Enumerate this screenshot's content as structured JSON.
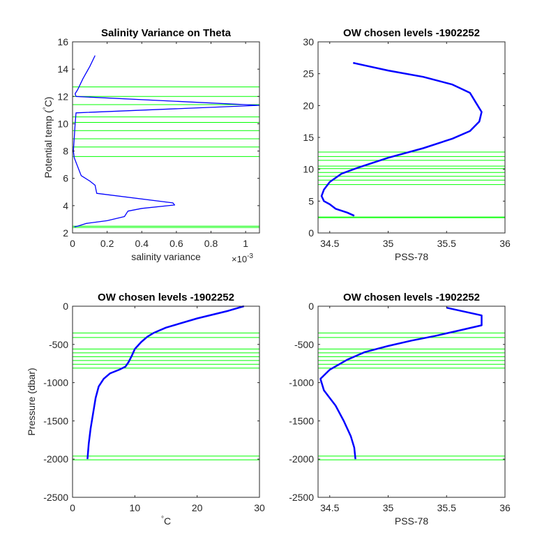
{
  "colors": {
    "profile": "#0000ff",
    "level": "#00ff00",
    "axes": "#262626"
  },
  "chart_data": [
    {
      "type": "line",
      "title": "Salinity Variance on Theta",
      "xlabel": "salinity variance",
      "x_exponent": "×10",
      "x_exponent_power": "-3",
      "ylabel": "Potential temp (",
      "ylabel_degree": "°",
      "ylabel_end": "C)",
      "xlim": [
        0,
        1.08
      ],
      "ylim": [
        2,
        16
      ],
      "xticks": [
        0,
        0.2,
        0.4,
        0.6,
        0.8,
        1
      ],
      "xtick_labels": [
        "0",
        "0.2",
        "0.4",
        "0.6",
        "0.8",
        "1"
      ],
      "yticks": [
        2,
        4,
        6,
        8,
        10,
        12,
        14,
        16
      ],
      "ytick_labels": [
        "2",
        "4",
        "6",
        "8",
        "10",
        "12",
        "14",
        "16"
      ],
      "series": [
        {
          "x": [
            0.13,
            0.1,
            0.06,
            0.03,
            0.015,
            0.02,
            1.08,
            0.02,
            0.015,
            0.01,
            0.005,
            0.01,
            0.05,
            0.1,
            0.13,
            0.14,
            0.58,
            0.59,
            0.4,
            0.32,
            0.3,
            0.2,
            0.08,
            0.03,
            0.01
          ],
          "y": [
            15,
            14.2,
            13.3,
            12.5,
            12.2,
            12.0,
            11.35,
            10.8,
            10.0,
            9.0,
            8.0,
            7.5,
            6.2,
            5.8,
            5.5,
            4.9,
            4.2,
            4.05,
            3.8,
            3.6,
            3.2,
            2.9,
            2.7,
            2.5,
            2.45
          ]
        }
      ],
      "levels": [
        2.4,
        2.5,
        7.6,
        8.3,
        8.9,
        9.5,
        10.1,
        10.5,
        11.4,
        12.0,
        12.7
      ]
    },
    {
      "type": "line",
      "title": "OW chosen levels -1902252",
      "xlabel": "PSS-78",
      "xlim": [
        34.4,
        36
      ],
      "ylim": [
        0,
        30
      ],
      "xticks": [
        34.5,
        35,
        35.5,
        36
      ],
      "xtick_labels": [
        "34.5",
        "35",
        "35.5",
        "36"
      ],
      "yticks": [
        0,
        5,
        10,
        15,
        20,
        25,
        30
      ],
      "ytick_labels": [
        "0",
        "5",
        "10",
        "15",
        "20",
        "25",
        "30"
      ],
      "series": [
        {
          "x": [
            34.71,
            34.65,
            34.55,
            34.5,
            34.45,
            34.43,
            34.45,
            34.5,
            34.6,
            34.75,
            35.0,
            35.3,
            35.55,
            35.7,
            35.78,
            35.8,
            35.75,
            35.7,
            35.55,
            35.3,
            35.0,
            34.8,
            34.7
          ],
          "y": [
            2.7,
            3.2,
            3.8,
            4.5,
            5.0,
            5.8,
            6.8,
            8.0,
            9.3,
            10.3,
            11.8,
            13.3,
            14.8,
            16.0,
            17.5,
            19.0,
            20.5,
            22.0,
            23.3,
            24.5,
            25.5,
            26.3,
            26.7
          ]
        }
      ],
      "levels": [
        2.4,
        2.5,
        7.6,
        8.3,
        8.9,
        9.5,
        10.1,
        10.5,
        11.4,
        12.0,
        12.7
      ]
    },
    {
      "type": "line",
      "title": "OW chosen levels -1902252",
      "xlabel": "C",
      "xlabel_degree": "°",
      "ylabel": "Pressure (dbar)",
      "xlim": [
        0,
        30
      ],
      "ylim": [
        -2500,
        0
      ],
      "xticks": [
        0,
        10,
        20,
        30
      ],
      "xtick_labels": [
        "0",
        "10",
        "20",
        "30"
      ],
      "yticks": [
        -2500,
        -2000,
        -1500,
        -1000,
        -500,
        0
      ],
      "ytick_labels": [
        "-2500",
        "-2000",
        "-1500",
        "-1000",
        "-500",
        "0"
      ],
      "series": [
        {
          "x": [
            27.5,
            25,
            20,
            15,
            13,
            12,
            11,
            10,
            9.5,
            9,
            8.5,
            7.5,
            6,
            5,
            4.2,
            3.7,
            3.3,
            2.9,
            2.6,
            2.4
          ],
          "y": [
            0,
            -60,
            -160,
            -280,
            -350,
            -400,
            -470,
            -560,
            -650,
            -730,
            -790,
            -830,
            -880,
            -950,
            -1050,
            -1200,
            -1400,
            -1600,
            -1800,
            -2000
          ]
        }
      ],
      "levels": [
        -350,
        -410,
        -560,
        -610,
        -660,
        -710,
        -760,
        -810,
        -1960,
        -2010
      ]
    },
    {
      "type": "line",
      "title": "OW chosen levels -1902252",
      "xlabel": "PSS-78",
      "xlim": [
        34.4,
        36
      ],
      "ylim": [
        -2500,
        0
      ],
      "xticks": [
        34.5,
        35,
        35.5,
        36
      ],
      "xtick_labels": [
        "34.5",
        "35",
        "35.5",
        "36"
      ],
      "yticks": [
        -2500,
        -2000,
        -1500,
        -1000,
        -500,
        0
      ],
      "ytick_labels": [
        "-2500",
        "-2000",
        "-1500",
        "-1000",
        "-500",
        "0"
      ],
      "series": [
        {
          "x": [
            35.5,
            35.8,
            35.8,
            35.6,
            35.4,
            35.2,
            35.0,
            34.8,
            34.65,
            34.5,
            34.42,
            34.45,
            34.55,
            34.62,
            34.68,
            34.71,
            34.72
          ],
          "y": [
            -20,
            -120,
            -250,
            -320,
            -390,
            -450,
            -520,
            -600,
            -700,
            -830,
            -950,
            -1100,
            -1300,
            -1500,
            -1700,
            -1850,
            -2000
          ]
        }
      ],
      "levels": [
        -350,
        -410,
        -560,
        -610,
        -660,
        -710,
        -760,
        -810,
        -1960,
        -2010
      ]
    }
  ]
}
